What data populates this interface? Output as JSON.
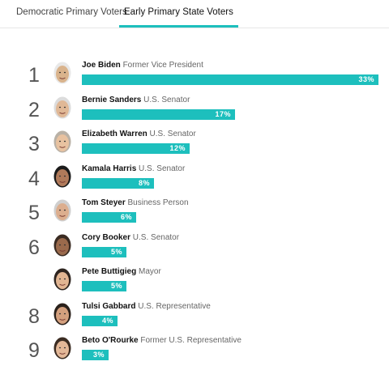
{
  "tabs": [
    {
      "label": "Democratic Primary Voters",
      "active": false
    },
    {
      "label": "Early Primary State Voters",
      "active": true
    }
  ],
  "accent_color": "#1dbfbd",
  "chart_data": {
    "type": "bar",
    "categories": [
      "Joe Biden",
      "Bernie Sanders",
      "Elizabeth Warren",
      "Kamala Harris",
      "Tom Steyer",
      "Cory Booker",
      "Pete Buttigieg",
      "Tulsi Gabbard",
      "Beto O'Rourke"
    ],
    "values": [
      33,
      17,
      12,
      8,
      6,
      5,
      5,
      4,
      3
    ],
    "unit": "%"
  },
  "candidates": [
    {
      "rank": "1",
      "name": "Joe Biden",
      "role": "Former Vice President",
      "pct": "33%",
      "value": 33
    },
    {
      "rank": "2",
      "name": "Bernie Sanders",
      "role": "U.S. Senator",
      "pct": "17%",
      "value": 17
    },
    {
      "rank": "3",
      "name": "Elizabeth Warren",
      "role": "U.S. Senator",
      "pct": "12%",
      "value": 12
    },
    {
      "rank": "4",
      "name": "Kamala Harris",
      "role": "U.S. Senator",
      "pct": "8%",
      "value": 8
    },
    {
      "rank": "5",
      "name": "Tom Steyer",
      "role": "Business Person",
      "pct": "6%",
      "value": 6
    },
    {
      "rank": "6",
      "name": "Cory Booker",
      "role": "U.S. Senator",
      "pct": "5%",
      "value": 5
    },
    {
      "rank": "",
      "name": "Pete Buttigieg",
      "role": "Mayor",
      "pct": "5%",
      "value": 5
    },
    {
      "rank": "8",
      "name": "Tulsi Gabbard",
      "role": "U.S. Representative",
      "pct": "4%",
      "value": 4
    },
    {
      "rank": "9",
      "name": "Beto O'Rourke",
      "role": "Former U.S. Representative",
      "pct": "3%",
      "value": 3
    }
  ]
}
